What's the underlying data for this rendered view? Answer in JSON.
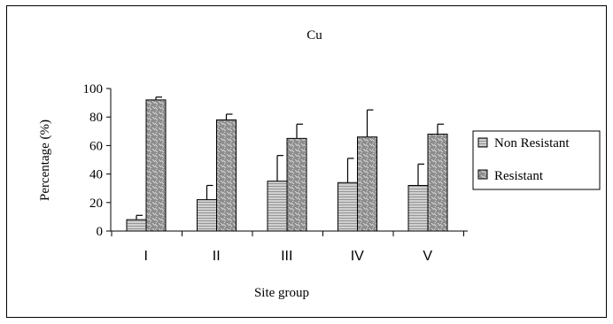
{
  "chart_data": {
    "type": "bar",
    "title": "Cu",
    "xlabel": "Site group",
    "ylabel": "Percentage (%)",
    "ylim": [
      0,
      100
    ],
    "yticks": [
      "0",
      "20",
      "40",
      "60",
      "80",
      "100"
    ],
    "categories": [
      "I",
      "II",
      "III",
      "IV",
      "V"
    ],
    "series": [
      {
        "name": "Non Resistant",
        "values": [
          8,
          22,
          35,
          34,
          32
        ],
        "error": [
          3,
          10,
          18,
          17,
          15
        ],
        "pattern": "horizontal-lines",
        "color": "#c8c8c8"
      },
      {
        "name": "Resistant",
        "values": [
          92,
          78,
          65,
          66,
          68
        ],
        "error": [
          2,
          4,
          10,
          19,
          7
        ],
        "pattern": "diagonal-dashes",
        "color": "#8a8a8a"
      }
    ],
    "legend_position": "right",
    "grid": false
  }
}
